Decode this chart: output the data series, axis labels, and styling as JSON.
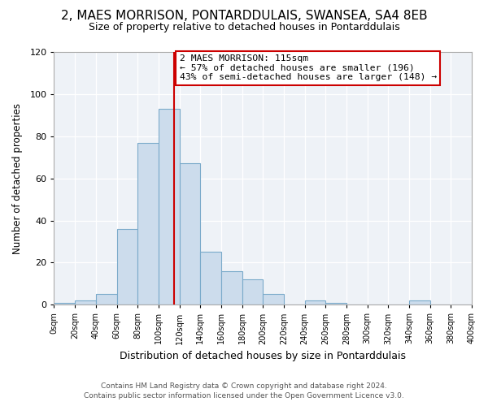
{
  "title": "2, MAES MORRISON, PONTARDDULAIS, SWANSEA, SA4 8EB",
  "subtitle": "Size of property relative to detached houses in Pontarddulais",
  "xlabel": "Distribution of detached houses by size in Pontarddulais",
  "ylabel": "Number of detached properties",
  "bin_edges": [
    0,
    20,
    40,
    60,
    80,
    100,
    120,
    140,
    160,
    180,
    200,
    220,
    240,
    260,
    280,
    300,
    320,
    340,
    360,
    380,
    400
  ],
  "bar_heights": [
    1,
    2,
    5,
    36,
    77,
    93,
    67,
    25,
    16,
    12,
    5,
    0,
    2,
    1,
    0,
    0,
    0,
    2,
    0,
    0
  ],
  "bar_color": "#ccdcec",
  "bar_edge_color": "#7aaaca",
  "vline_x": 115,
  "vline_color": "#cc0000",
  "annotation_title": "2 MAES MORRISON: 115sqm",
  "annotation_line1": "← 57% of detached houses are smaller (196)",
  "annotation_line2": "43% of semi-detached houses are larger (148) →",
  "annotation_box_color": "#ffffff",
  "annotation_box_edge": "#cc0000",
  "ylim": [
    0,
    120
  ],
  "xlim": [
    0,
    400
  ],
  "tick_labels": [
    "0sqm",
    "20sqm",
    "40sqm",
    "60sqm",
    "80sqm",
    "100sqm",
    "120sqm",
    "140sqm",
    "160sqm",
    "180sqm",
    "200sqm",
    "220sqm",
    "240sqm",
    "260sqm",
    "280sqm",
    "300sqm",
    "320sqm",
    "340sqm",
    "360sqm",
    "380sqm",
    "400sqm"
  ],
  "footer_line1": "Contains HM Land Registry data © Crown copyright and database right 2024.",
  "footer_line2": "Contains public sector information licensed under the Open Government Licence v3.0.",
  "background_color": "#ffffff",
  "plot_bg_color": "#eef2f7",
  "grid_color": "#ffffff",
  "title_fontsize": 11,
  "subtitle_fontsize": 9
}
